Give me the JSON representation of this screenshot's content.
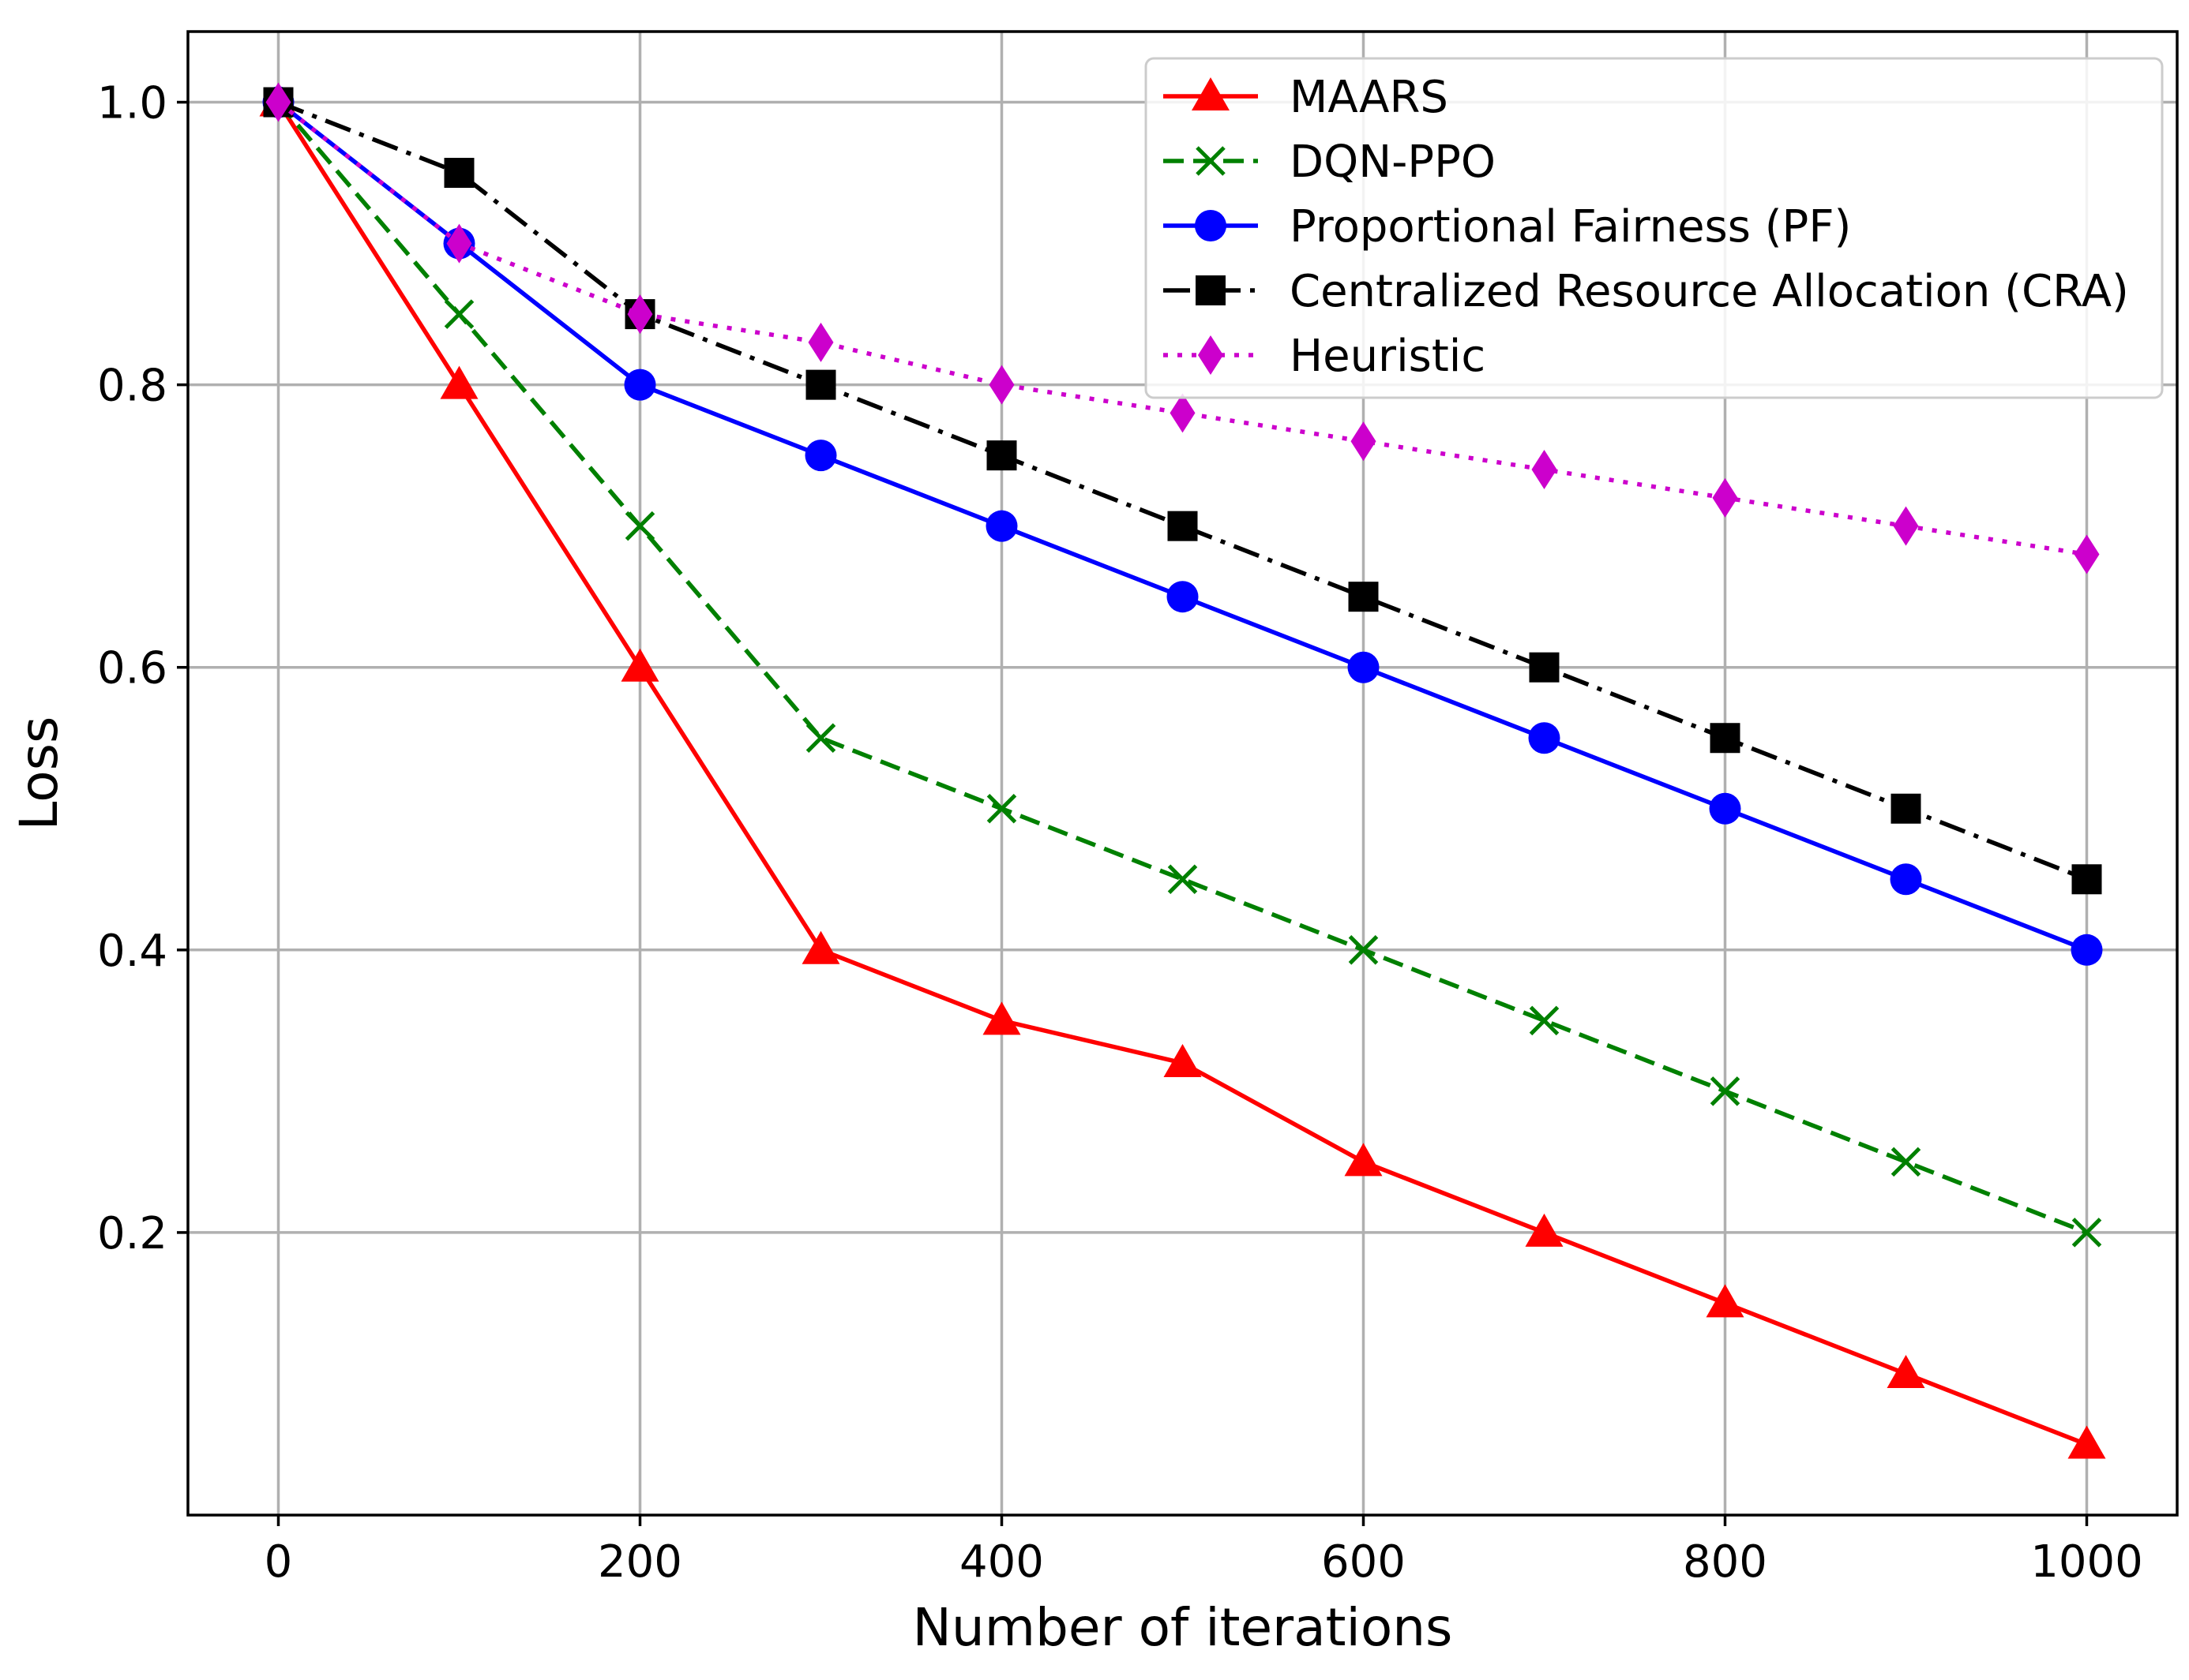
{
  "chart_data": {
    "type": "line",
    "title": "",
    "xlabel": "Number of iterations",
    "ylabel": "Loss",
    "xlim": [
      -50,
      1050
    ],
    "ylim": [
      0.0,
      1.05
    ],
    "xticks": [
      0,
      200,
      400,
      600,
      800,
      1000
    ],
    "yticks": [
      0.2,
      0.4,
      0.6,
      0.8,
      1.0
    ],
    "xtick_labels": [
      "0",
      "200",
      "400",
      "600",
      "800",
      "1000"
    ],
    "ytick_labels": [
      "0.2",
      "0.4",
      "0.6",
      "0.8",
      "1.0"
    ],
    "grid": true,
    "legend_position": "top-right",
    "x": [
      0,
      100,
      200,
      300,
      400,
      500,
      600,
      700,
      800,
      900,
      1000
    ],
    "series": [
      {
        "name": "MAARS",
        "color": "#ff0000",
        "dash": "solid",
        "marker": "triangle",
        "values": [
          1.0,
          0.8,
          0.6,
          0.4,
          0.35,
          0.32,
          0.25,
          0.2,
          0.15,
          0.1,
          0.05
        ]
      },
      {
        "name": "DQN-PPO",
        "color": "#008000",
        "dash": "dashed",
        "marker": "x",
        "values": [
          1.0,
          0.85,
          0.7,
          0.55,
          0.5,
          0.45,
          0.4,
          0.35,
          0.3,
          0.25,
          0.2
        ]
      },
      {
        "name": "Proportional Fairness (PF)",
        "color": "#0000ff",
        "dash": "solid",
        "marker": "circle",
        "values": [
          1.0,
          0.9,
          0.8,
          0.75,
          0.7,
          0.65,
          0.6,
          0.55,
          0.5,
          0.45,
          0.4
        ]
      },
      {
        "name": "Centralized Resource Allocation (CRA)",
        "color": "#000000",
        "dash": "dashdot",
        "marker": "square",
        "values": [
          1.0,
          0.95,
          0.85,
          0.8,
          0.75,
          0.7,
          0.65,
          0.6,
          0.55,
          0.5,
          0.45
        ]
      },
      {
        "name": "Heuristic",
        "color": "#cc00cc",
        "dash": "dotted",
        "marker": "diamond",
        "values": [
          1.0,
          0.9,
          0.85,
          0.83,
          0.8,
          0.78,
          0.76,
          0.74,
          0.72,
          0.7,
          0.68
        ]
      }
    ]
  }
}
